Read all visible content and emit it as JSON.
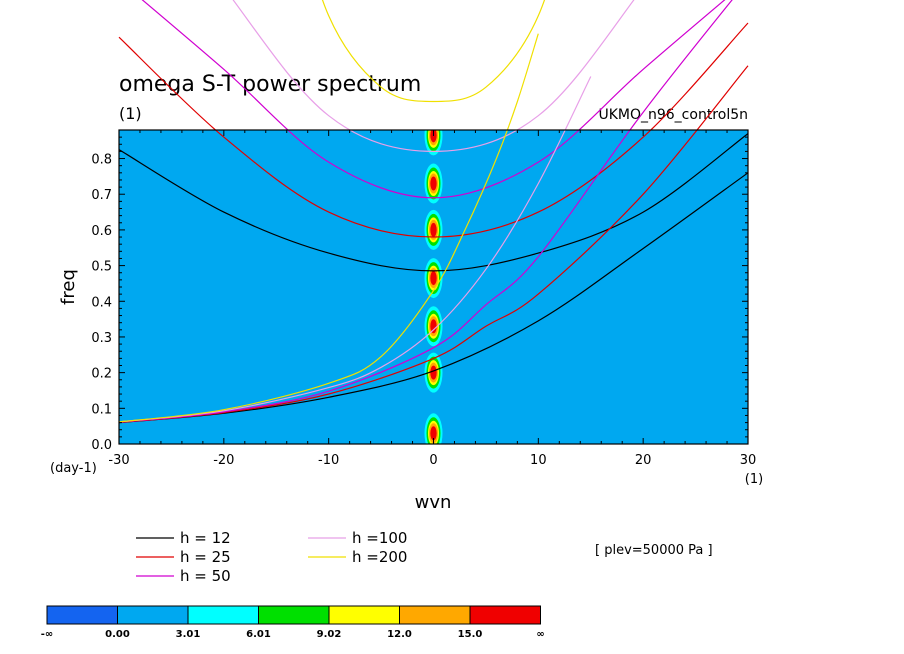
{
  "chart_data": {
    "type": "line",
    "title": "omega S-T power spectrum",
    "subtitle": "(1)",
    "dataset_label": "UKMO_n96_control5n",
    "annotation": "[ plev=50000 Pa ]",
    "xlabel": "wvn",
    "ylabel": "freq",
    "x_unit": "(1)",
    "y_unit": "(day-1)",
    "xlim": [
      -30,
      30
    ],
    "ylim": [
      0,
      0.88
    ],
    "xticks": [
      -30,
      -20,
      -10,
      0,
      10,
      20,
      30
    ],
    "yticks": [
      0.0,
      0.1,
      0.2,
      0.3,
      0.4,
      0.5,
      0.6,
      0.7,
      0.8
    ],
    "xtick_labels": [
      "-30",
      "-20",
      "-10",
      "0",
      "10",
      "20",
      "30"
    ],
    "ytick_labels": [
      "0.0",
      "0.1",
      "0.2",
      "0.3",
      "0.4",
      "0.5",
      "0.6",
      "0.7",
      "0.8"
    ],
    "background_color": "#00a8f0",
    "series": [
      {
        "name": "h = 12",
        "color": "#000000",
        "kelvin": {
          "x": [
            -30,
            -20,
            -10,
            0,
            10,
            20,
            30
          ],
          "y": [
            0.06,
            0.086,
            0.131,
            0.205,
            0.345,
            0.548,
            0.76
          ]
        },
        "ig": {
          "x": [
            -30,
            -20,
            -10,
            0,
            10,
            20,
            30
          ],
          "y": [
            0.825,
            0.65,
            0.535,
            0.485,
            0.535,
            0.65,
            0.87
          ]
        }
      },
      {
        "name": "h = 25",
        "color": "#e00000",
        "kelvin": {
          "x": [
            -30,
            -20,
            -10,
            0,
            5,
            10,
            20,
            30
          ],
          "y": [
            0.06,
            0.088,
            0.14,
            0.24,
            0.33,
            0.42,
            0.7,
            1.06
          ]
        },
        "ig": {
          "x": [
            -30,
            -20,
            -10,
            0,
            10,
            20,
            30
          ],
          "y": [
            1.14,
            0.86,
            0.65,
            0.58,
            0.65,
            0.86,
            1.18
          ]
        }
      },
      {
        "name": "h = 50",
        "color": "#d000d0",
        "kelvin": {
          "x": [
            -30,
            -20,
            -10,
            0,
            5,
            10,
            20,
            30
          ],
          "y": [
            0.061,
            0.09,
            0.148,
            0.27,
            0.39,
            0.525,
            0.93,
            1.3
          ]
        },
        "ig": {
          "x": [
            -30,
            -20,
            -10,
            0,
            10,
            20,
            30
          ],
          "y": [
            1.3,
            1.05,
            0.79,
            0.69,
            0.79,
            1.05,
            1.3
          ]
        }
      },
      {
        "name": "h =100",
        "color": "#e8a0e8",
        "kelvin": {
          "x": [
            -30,
            -20,
            -10,
            -5,
            0,
            5,
            10,
            15
          ],
          "y": [
            0.062,
            0.093,
            0.158,
            0.215,
            0.32,
            0.49,
            0.73,
            1.03
          ]
        },
        "ig": {
          "x": [
            -30,
            -20,
            -10,
            0,
            10,
            20,
            30
          ],
          "y": [
            1.7,
            1.28,
            0.92,
            0.82,
            0.92,
            1.28,
            1.7
          ]
        }
      },
      {
        "name": "h =200",
        "color": "#f0e000",
        "kelvin": {
          "x": [
            -30,
            -20,
            -10,
            -5,
            0,
            3,
            6,
            8,
            10
          ],
          "y": [
            0.062,
            0.096,
            0.17,
            0.245,
            0.43,
            0.6,
            0.8,
            0.96,
            1.15
          ]
        },
        "ig": {
          "x": [
            -14,
            -10,
            -5,
            0,
            5,
            10,
            14
          ],
          "y": [
            1.6,
            1.2,
            1.0,
            0.96,
            1.0,
            1.2,
            1.6
          ]
        }
      }
    ],
    "spectral_peaks": {
      "x": 0,
      "freq": [
        0.03,
        0.2,
        0.33,
        0.465,
        0.6,
        0.73,
        0.865
      ]
    },
    "colorbar": {
      "labels": [
        "-∞",
        "0.00",
        "3.01",
        "6.01",
        "9.02",
        "12.0",
        "15.0",
        "∞"
      ],
      "colors": [
        "#1464f0",
        "#00a8f0",
        "#00ffff",
        "#00e000",
        "#ffff00",
        "#ffa800",
        "#f00000"
      ]
    }
  }
}
